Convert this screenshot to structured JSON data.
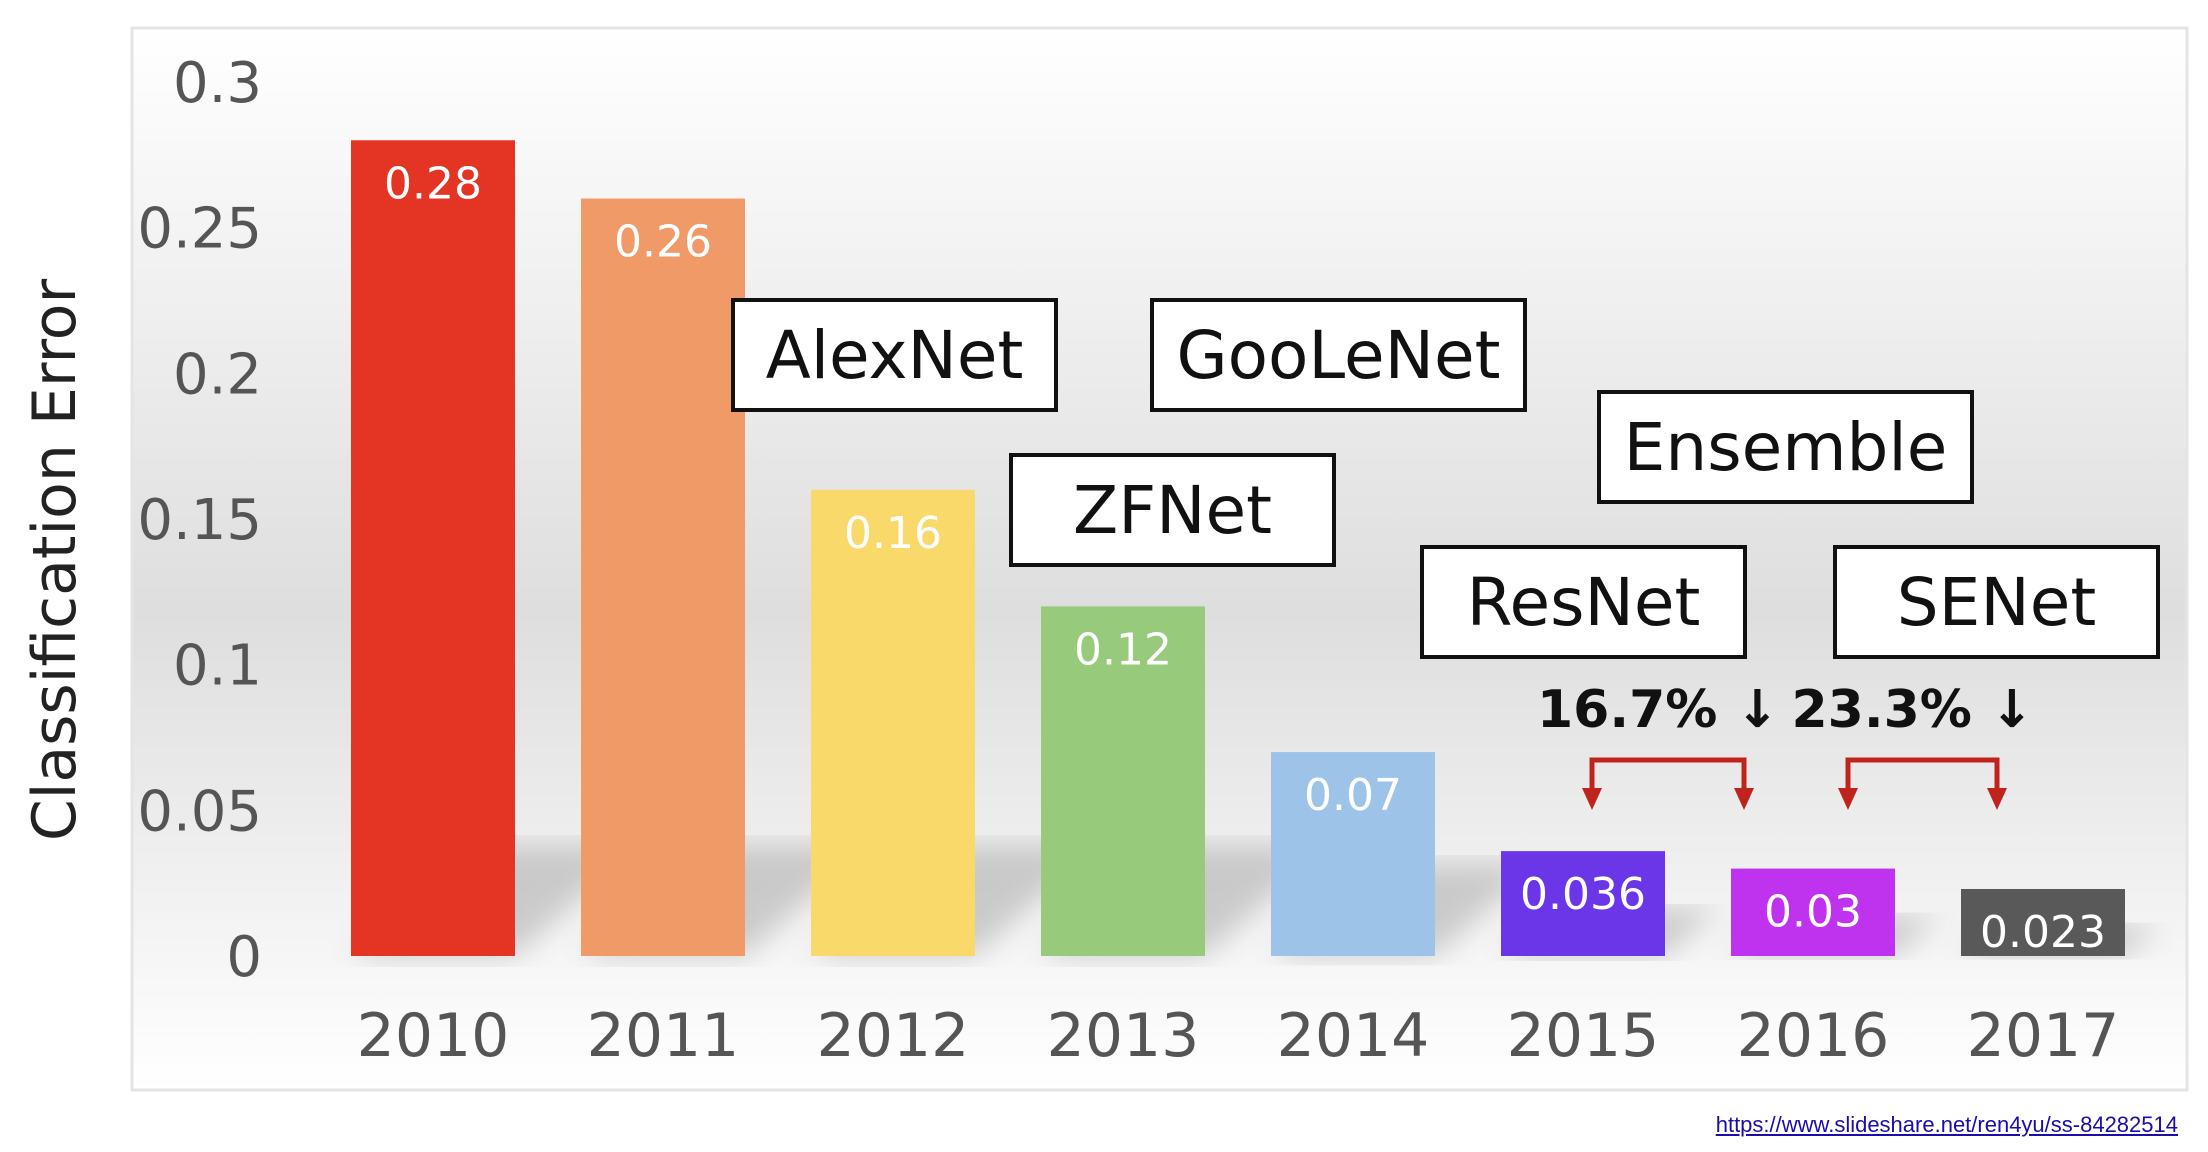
{
  "chart_data": {
    "type": "bar",
    "ylabel": "Classification Error",
    "xlabel": "",
    "title": "",
    "ylim": [
      0,
      0.3
    ],
    "yticks": [
      "0",
      "0.05",
      "0.1",
      "0.15",
      "0.2",
      "0.25",
      "0.3"
    ],
    "categories": [
      "2010",
      "2011",
      "2012",
      "2013",
      "2014",
      "2015",
      "2016",
      "2017"
    ],
    "values": [
      0.28,
      0.26,
      0.16,
      0.12,
      0.07,
      0.036,
      0.03,
      0.023
    ],
    "value_labels": [
      "0.28",
      "0.26",
      "0.16",
      "0.12",
      "0.07",
      "0.036",
      "0.03",
      "0.023"
    ],
    "bar_colors": [
      "#e33424",
      "#ef9a67",
      "#f8d96a",
      "#97ca7b",
      "#9dc3e8",
      "#6b36e8",
      "#c033ee",
      "#595959"
    ],
    "grid": false,
    "annotations": {
      "models": [
        {
          "label": "AlexNet",
          "category": "2012"
        },
        {
          "label": "ZFNet",
          "category": "2013"
        },
        {
          "label": "GooLeNet",
          "category": "2014"
        },
        {
          "label": "ResNet",
          "category": "2015"
        },
        {
          "label": "Ensemble",
          "category": "2016"
        },
        {
          "label": "SENet",
          "category": "2017"
        }
      ],
      "reductions": [
        {
          "label": "16.7% ↓",
          "from": "2015",
          "to": "2016"
        },
        {
          "label": "23.3% ↓",
          "from": "2016",
          "to": "2017"
        }
      ],
      "arrow_color": "#c0231b"
    }
  },
  "source": {
    "url_text": "https://www.slideshare.net/ren4yu/ss-84282514"
  }
}
